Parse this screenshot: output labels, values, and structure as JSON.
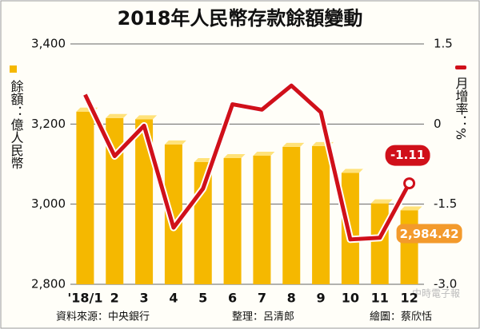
{
  "chart_data": {
    "type": "bar",
    "title": "2018年人民幣存款餘額變動",
    "y_label": "餘額：億人民幣",
    "y2_label": "月增率：%",
    "categories": [
      "'18/1",
      "2",
      "3",
      "4",
      "5",
      "6",
      "7",
      "8",
      "9",
      "10",
      "11",
      "12"
    ],
    "series": [
      {
        "type": "bar",
        "color": "#f5b800",
        "values": [
          3231,
          3215,
          3212,
          3149,
          3105,
          3115,
          3121,
          3143,
          3145,
          3078,
          3002,
          2984.42
        ],
        "value_labels": [
          null,
          null,
          null,
          null,
          null,
          null,
          null,
          null,
          null,
          null,
          null,
          "2,984.42"
        ]
      },
      {
        "type": "line",
        "axis": "y2",
        "color": "#d0101a",
        "values": [
          0.55,
          -0.6,
          -0.03,
          -1.94,
          -1.21,
          0.37,
          0.27,
          0.72,
          0.22,
          -2.16,
          -2.13,
          -1.11
        ],
        "value_labels": [
          null,
          null,
          null,
          null,
          null,
          null,
          null,
          null,
          null,
          null,
          null,
          "-1.11"
        ]
      }
    ],
    "ylim": [
      2800,
      3400
    ],
    "yticks": [
      {
        "value": 2800,
        "label": "2,800"
      },
      {
        "value": 3000,
        "label": "3,000"
      },
      {
        "value": 3200,
        "label": "3,200"
      },
      {
        "value": 3400,
        "label": "3,400"
      }
    ],
    "y2lim": [
      -3,
      1.5
    ],
    "y2ticks": [
      {
        "value": -3,
        "label": "-3.0"
      },
      -1.5,
      0,
      1.5
    ],
    "grid": true,
    "source": "資料來源：中央銀行",
    "editor": "整理：呂清郎",
    "artist": "繪圖：蔡欣恬",
    "watermark": "中時電子報"
  }
}
